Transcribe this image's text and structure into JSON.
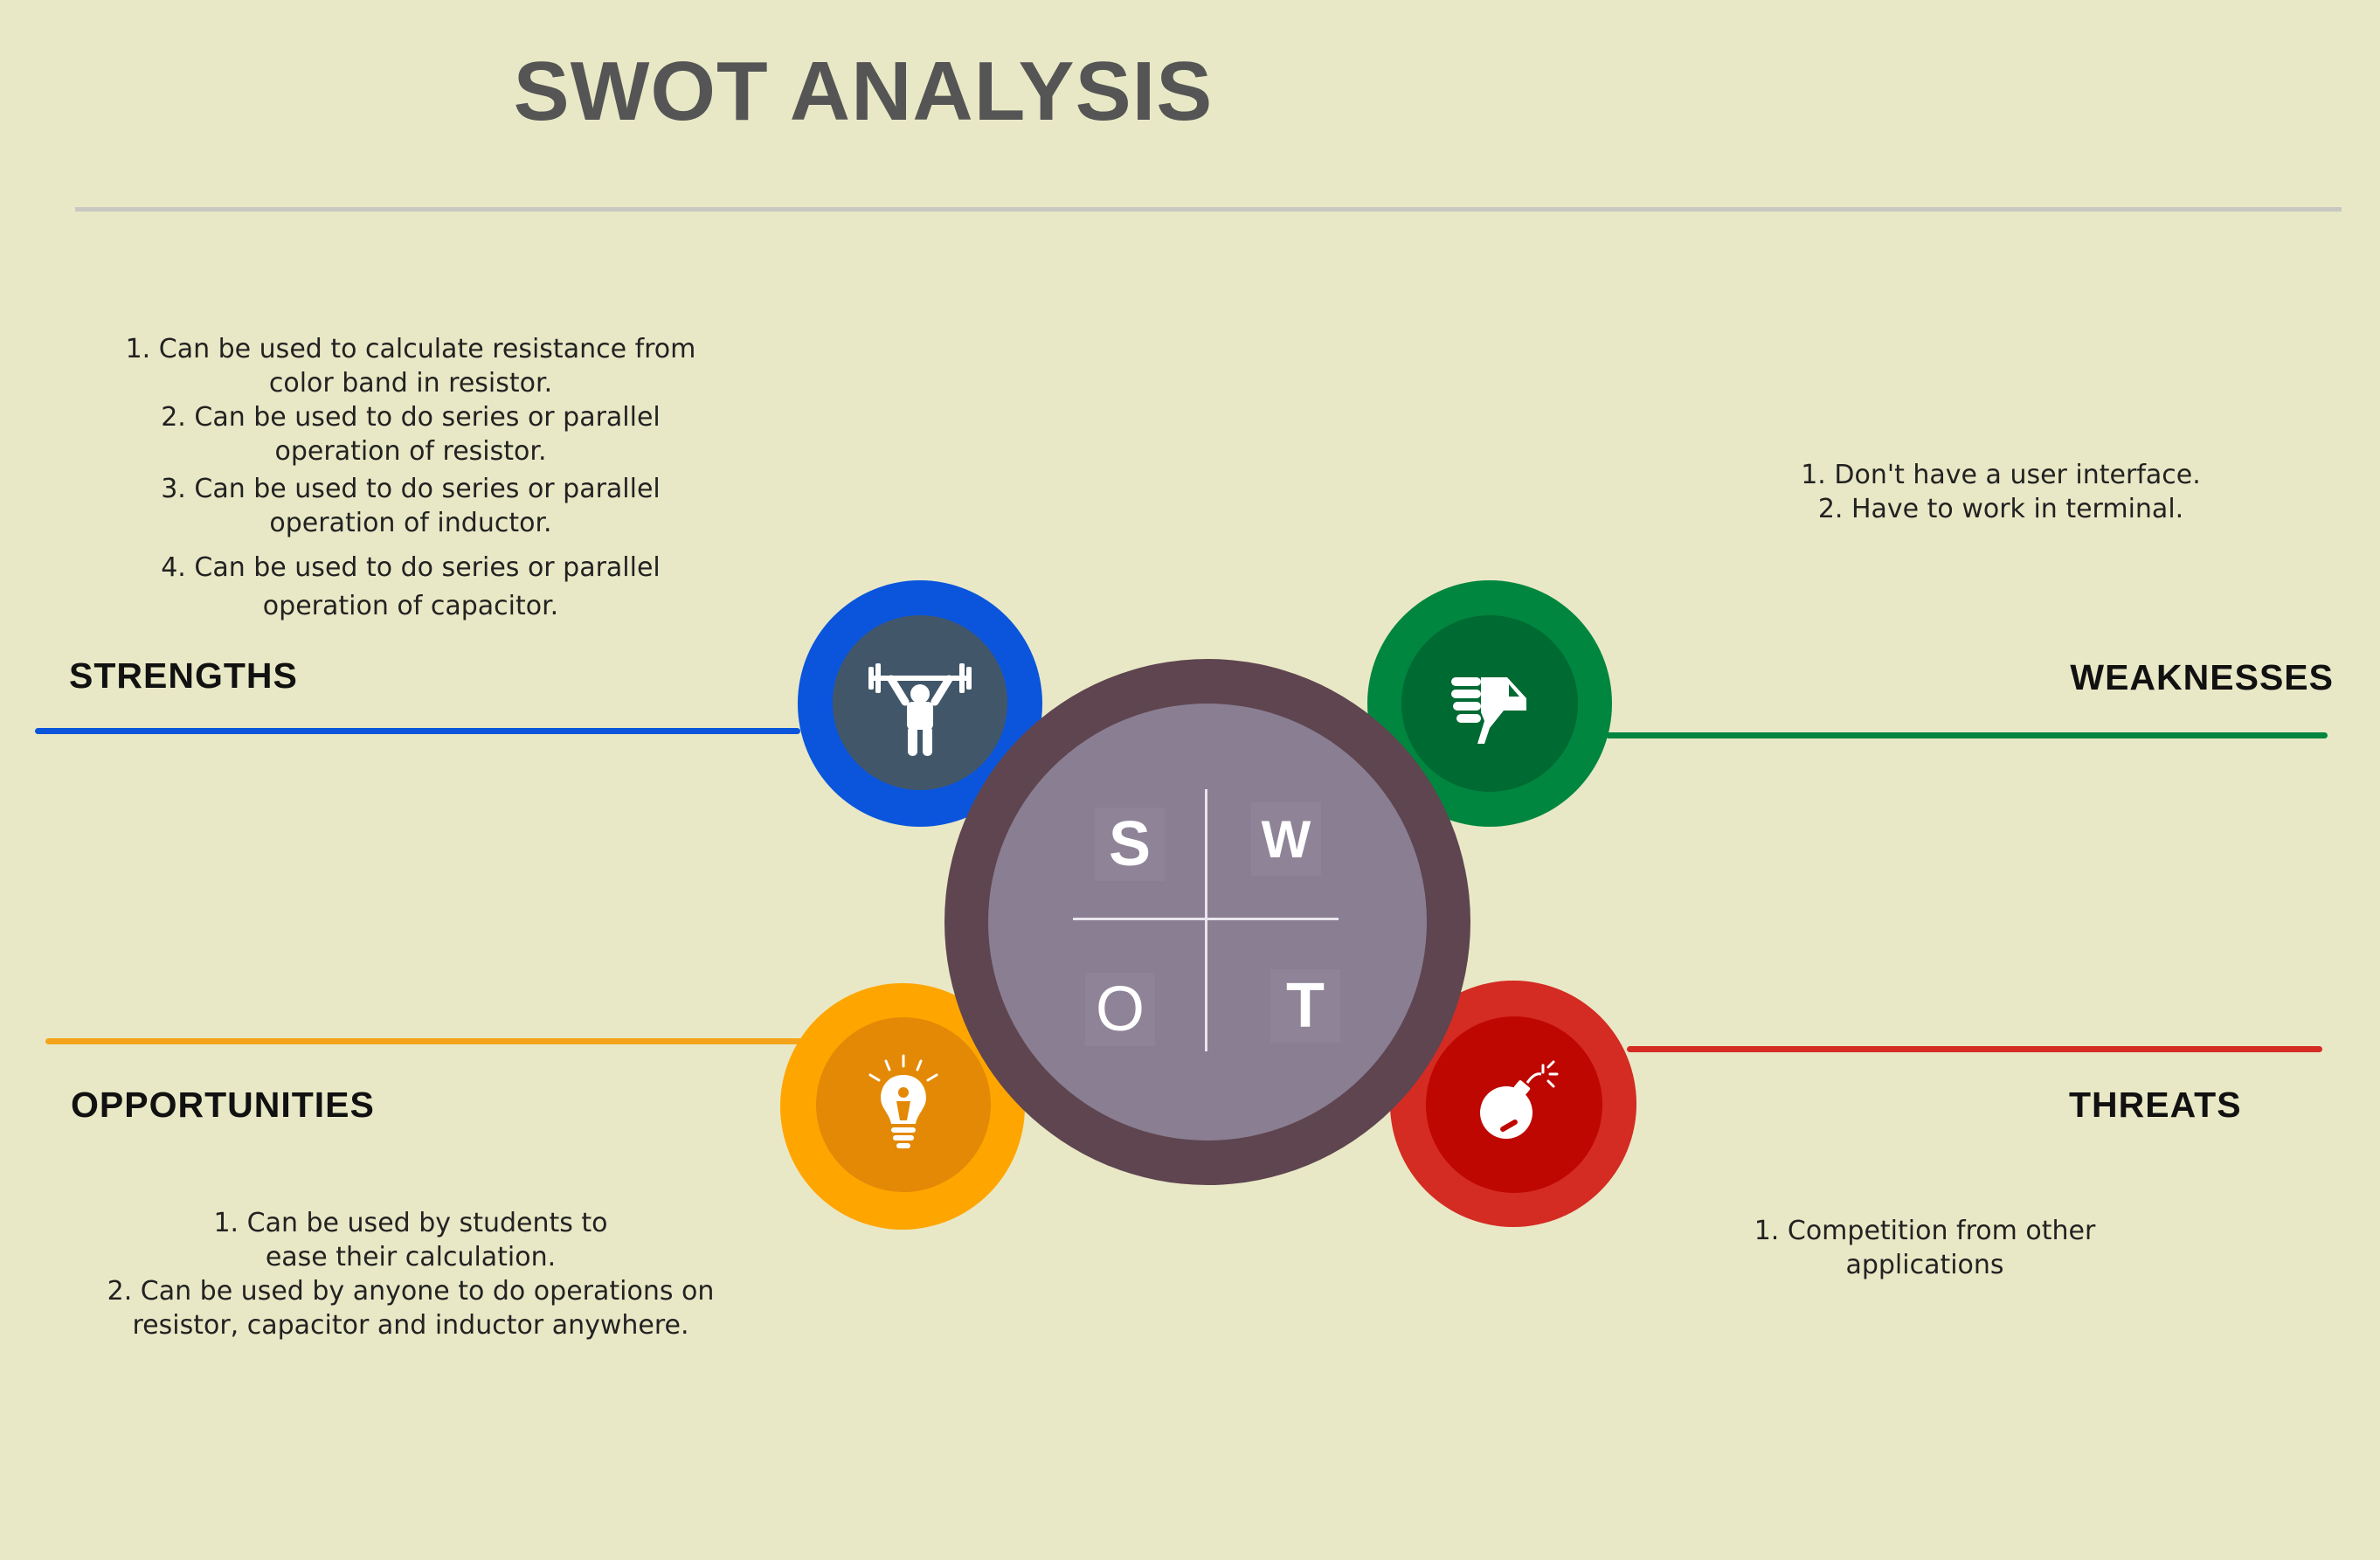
{
  "title": "SWOT ANALYSIS",
  "strengths": {
    "label": "STRENGTHS",
    "color": "#0a55dc",
    "items": [
      "1. Can be used to calculate resistance from color band in resistor.",
      "2. Can be used to do series or parallel operation of resistor.",
      "3. Can be used to do series or parallel operation of inductor.",
      "4. Can be used to do series or parallel operation of capacitor."
    ],
    "icon": "weightlifter-icon"
  },
  "weaknesses": {
    "label": "WEAKNESSES",
    "color": "#00863f",
    "items": [
      "1. Don't have a user interface.",
      "2. Have to work in terminal."
    ],
    "icon": "thumbs-down-icon"
  },
  "opportunities": {
    "label": "OPPORTUNITIES",
    "color": "#ffa500",
    "items": [
      "1. Can be used by students to ease their calculation.",
      "2. Can be used by anyone to do operations on resistor, capacitor and inductor anywhere."
    ],
    "icon": "lightbulb-icon"
  },
  "threats": {
    "label": "THREATS",
    "color": "#d42b23",
    "items": [
      "1. Competition from other applications"
    ],
    "icon": "bomb-icon"
  },
  "center": {
    "s": "S",
    "w": "W",
    "o": "O",
    "t": "T"
  }
}
